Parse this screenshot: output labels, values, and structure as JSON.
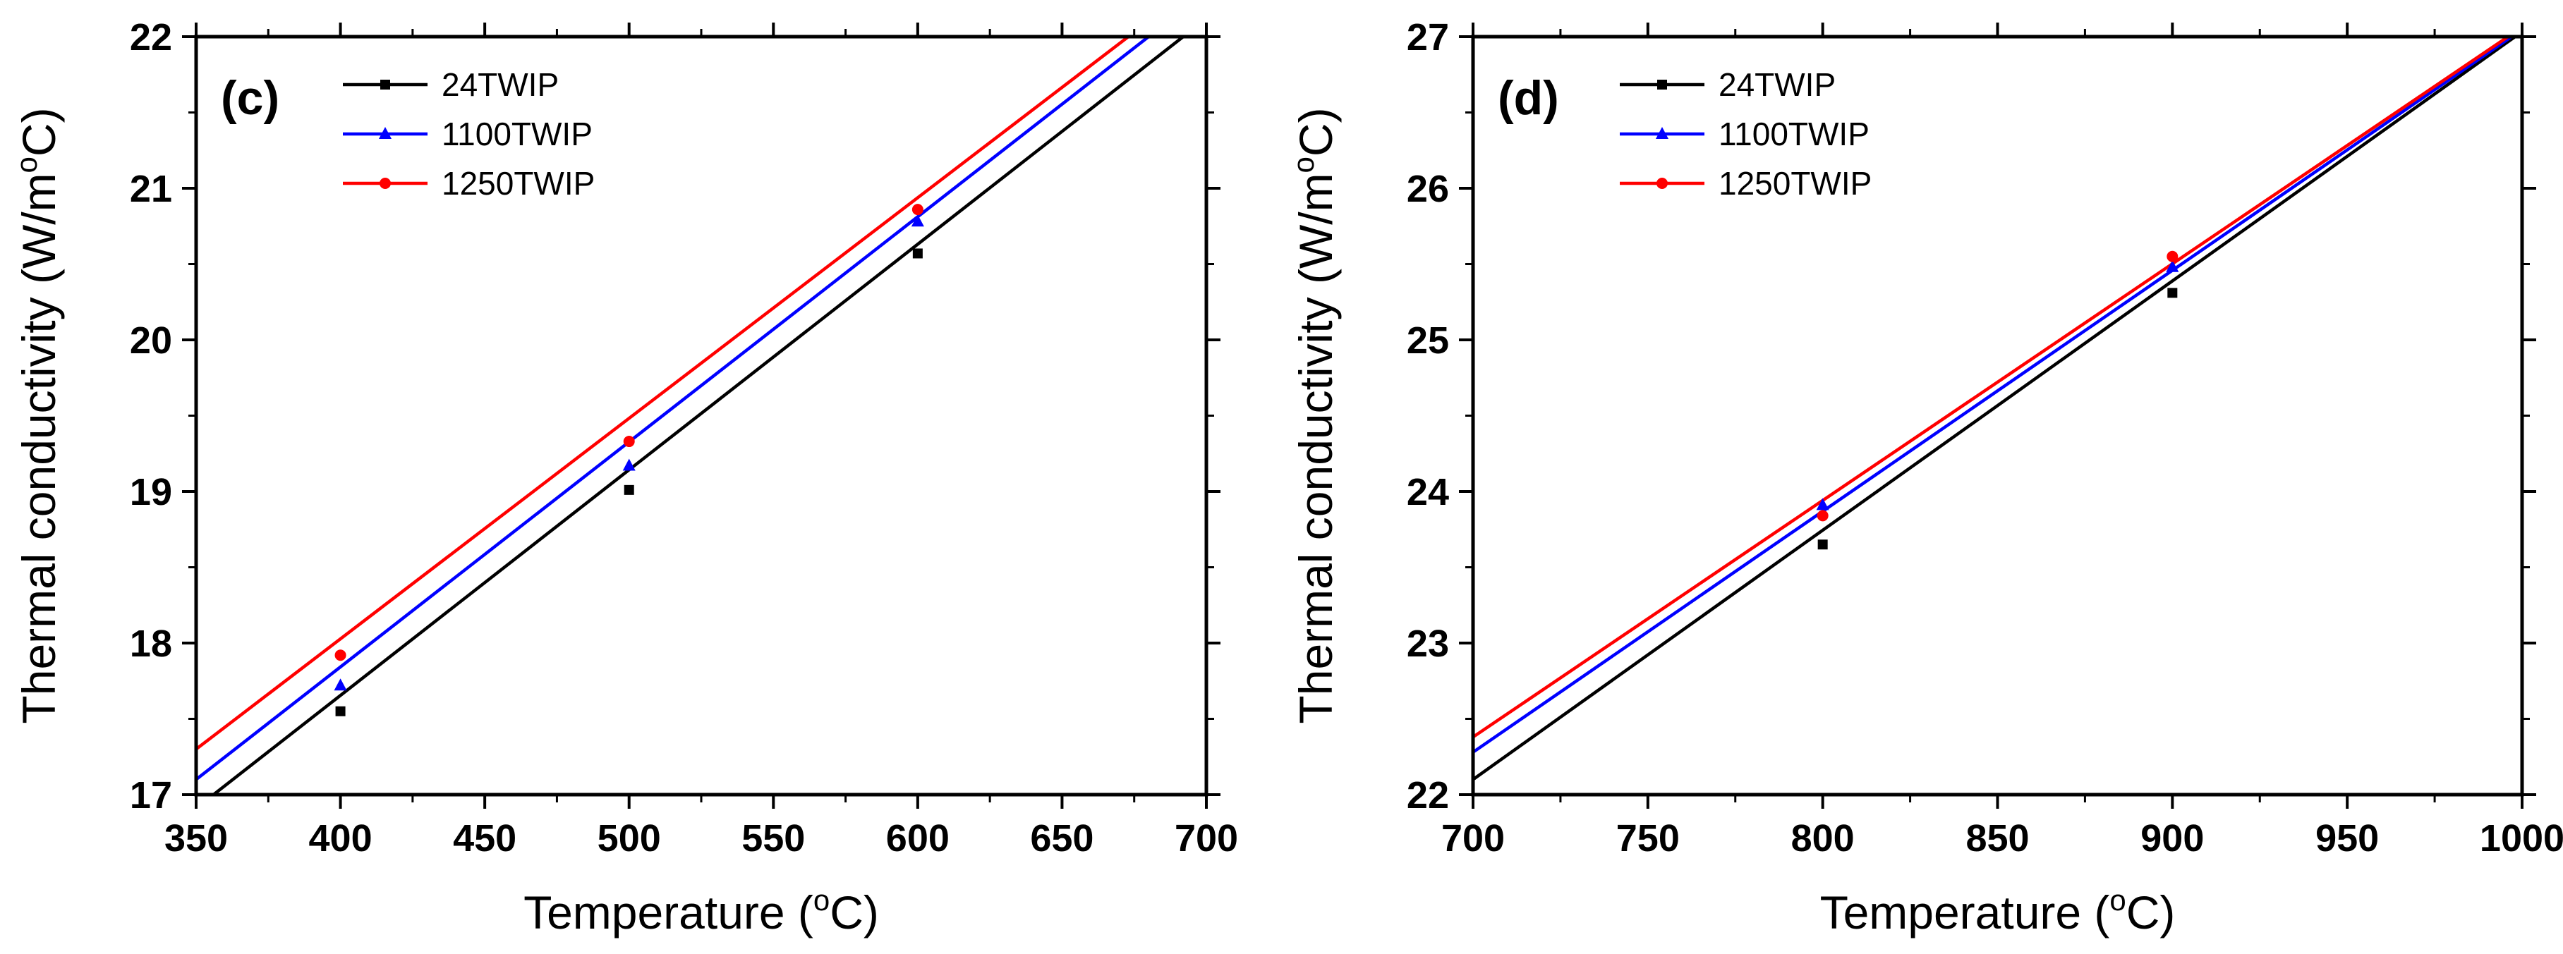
{
  "chart_data": [
    {
      "type": "line",
      "panel_label": "(c)",
      "xlabel": "Temperature (",
      "xlabel_sup": "o",
      "xlabel_tail": "C)",
      "ylabel": "Thermal conductivity (W/m",
      "ylabel_sup": "o",
      "ylabel_tail": "C)",
      "xlim": [
        350,
        700
      ],
      "ylim": [
        17,
        22
      ],
      "xticks": [
        350,
        400,
        450,
        500,
        550,
        600,
        650,
        700
      ],
      "yticks": [
        17,
        18,
        19,
        20,
        21,
        22
      ],
      "grid": false,
      "legend_position": "top-left",
      "series": [
        {
          "name": "24TWIP",
          "color": "#000000",
          "marker": "square",
          "line_x": [
            354,
            692
          ],
          "line_y": [
            16.97,
            22.0
          ],
          "points": [
            [
              400,
              17.55
            ],
            [
              500,
              19.01
            ],
            [
              600,
              20.57
            ]
          ]
        },
        {
          "name": "1100TWIP",
          "color": "#0000ff",
          "marker": "triangle",
          "line_x": [
            350,
            680
          ],
          "line_y": [
            17.1,
            22.0
          ],
          "points": [
            [
              400,
              17.72
            ],
            [
              500,
              19.17
            ],
            [
              600,
              20.78
            ]
          ]
        },
        {
          "name": "1250TWIP",
          "color": "#ff0000",
          "marker": "circle",
          "line_x": [
            350,
            673
          ],
          "line_y": [
            17.3,
            22.0
          ],
          "points": [
            [
              400,
              17.92
            ],
            [
              500,
              19.33
            ],
            [
              600,
              20.86
            ]
          ]
        }
      ]
    },
    {
      "type": "line",
      "panel_label": "(d)",
      "xlabel": "Temperature (",
      "xlabel_sup": "o",
      "xlabel_tail": "C)",
      "ylabel": "Thermal conductivity (W/m",
      "ylabel_sup": "o",
      "ylabel_tail": "C)",
      "xlim": [
        700,
        1000
      ],
      "ylim": [
        22,
        27
      ],
      "xticks": [
        700,
        750,
        800,
        850,
        900,
        950,
        1000
      ],
      "yticks": [
        22,
        23,
        24,
        25,
        26,
        27
      ],
      "grid": false,
      "legend_position": "top-left",
      "series": [
        {
          "name": "24TWIP",
          "color": "#000000",
          "marker": "square",
          "line_x": [
            700,
            998
          ],
          "line_y": [
            22.1,
            27.0
          ],
          "points": [
            [
              800,
              23.65
            ],
            [
              900,
              25.31
            ]
          ]
        },
        {
          "name": "1100TWIP",
          "color": "#0000ff",
          "marker": "triangle",
          "line_x": [
            700,
            997
          ],
          "line_y": [
            22.28,
            27.0
          ],
          "points": [
            [
              800,
              23.91
            ],
            [
              900,
              25.48
            ]
          ]
        },
        {
          "name": "1250TWIP",
          "color": "#ff0000",
          "marker": "circle",
          "line_x": [
            700,
            996
          ],
          "line_y": [
            22.38,
            27.0
          ],
          "points": [
            [
              800,
              23.84
            ],
            [
              900,
              25.55
            ]
          ]
        }
      ]
    }
  ]
}
